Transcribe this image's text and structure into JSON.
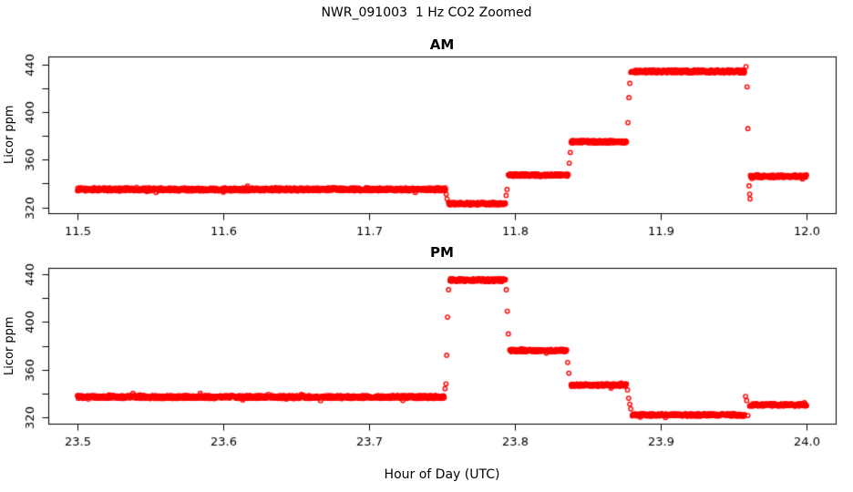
{
  "title": "NWR_091003  1 Hz CO2 Zoomed",
  "xlabel": "Hour of Day (UTC)",
  "colors": {
    "points": "#FF0000",
    "axis": "#000000",
    "background": "#FFFFFF"
  },
  "chart_data": [
    {
      "type": "scatter",
      "title": "AM",
      "ylabel": "Licor ppm",
      "xlim": [
        11.5,
        12.0
      ],
      "ylim": [
        320,
        440
      ],
      "xticks": [
        "11.5",
        "11.6",
        "11.7",
        "11.8",
        "11.9",
        "12.0"
      ],
      "xtick_values": [
        11.5,
        11.6,
        11.7,
        11.8,
        11.9,
        12.0
      ],
      "ytick_labeled": [
        320,
        360,
        400,
        440
      ],
      "ytick_minor": [
        340,
        380,
        420
      ],
      "sample_rate_hz": 1,
      "marker": "open-circle",
      "point_color": "#FF0000",
      "grid": false,
      "segments": [
        {
          "t_start": 11.5,
          "t_end": 11.7525,
          "ppm": 335.0,
          "noise": 1.3
        },
        {
          "t_start": 11.7545,
          "t_end": 11.7935,
          "ppm": 323.0,
          "noise": 1.1
        },
        {
          "t_start": 11.7955,
          "t_end": 11.8365,
          "ppm": 347.0,
          "noise": 1.1
        },
        {
          "t_start": 11.8385,
          "t_end": 11.8765,
          "ppm": 375.0,
          "noise": 1.1
        },
        {
          "t_start": 11.8795,
          "t_end": 11.9575,
          "ppm": 434.0,
          "noise": 1.3
        },
        {
          "t_start": 11.9615,
          "t_end": 12.0,
          "ppm": 346.0,
          "noise": 1.1
        }
      ],
      "transition_points": [
        [
          11.7529,
          331.0
        ],
        [
          11.7535,
          327.0
        ],
        [
          11.794,
          330.0
        ],
        [
          11.7946,
          335.0
        ],
        [
          11.8373,
          357.0
        ],
        [
          11.838,
          366.0
        ],
        [
          11.8775,
          391.0
        ],
        [
          11.8782,
          412.0
        ],
        [
          11.8788,
          424.0
        ],
        [
          11.9585,
          438.0
        ],
        [
          11.9592,
          421.0
        ],
        [
          11.9598,
          386.0
        ],
        [
          11.9606,
          338.0
        ],
        [
          11.961,
          331.0
        ],
        [
          11.9613,
          327.0
        ]
      ]
    },
    {
      "type": "scatter",
      "title": "PM",
      "ylabel": "Licor ppm",
      "xlim": [
        23.5,
        24.0
      ],
      "ylim": [
        320,
        440
      ],
      "xticks": [
        "23.5",
        "23.6",
        "23.7",
        "23.8",
        "23.9",
        "24.0"
      ],
      "xtick_values": [
        23.5,
        23.6,
        23.7,
        23.8,
        23.9,
        24.0
      ],
      "ytick_labeled": [
        320,
        360,
        400,
        440
      ],
      "ytick_minor": [
        340,
        380,
        420
      ],
      "sample_rate_hz": 1,
      "marker": "open-circle",
      "point_color": "#FF0000",
      "grid": false,
      "segments": [
        {
          "t_start": 23.5,
          "t_end": 23.7515,
          "ppm": 337.0,
          "noise": 1.3
        },
        {
          "t_start": 23.7555,
          "t_end": 23.7935,
          "ppm": 435.0,
          "noise": 1.3
        },
        {
          "t_start": 23.7965,
          "t_end": 23.8355,
          "ppm": 376.0,
          "noise": 1.1
        },
        {
          "t_start": 23.8385,
          "t_end": 23.8765,
          "ppm": 347.0,
          "noise": 1.1
        },
        {
          "t_start": 23.8805,
          "t_end": 23.9575,
          "ppm": 322.0,
          "noise": 1.1
        },
        {
          "t_start": 23.961,
          "t_end": 24.0,
          "ppm": 330.5,
          "noise": 1.1
        }
      ],
      "transition_points": [
        [
          23.7521,
          344.0
        ],
        [
          23.7527,
          348.0
        ],
        [
          23.7532,
          372.0
        ],
        [
          23.7538,
          404.0
        ],
        [
          23.7545,
          427.0
        ],
        [
          23.7941,
          427.0
        ],
        [
          23.7948,
          409.0
        ],
        [
          23.7955,
          390.0
        ],
        [
          23.8362,
          366.0
        ],
        [
          23.837,
          357.0
        ],
        [
          23.8772,
          343.0
        ],
        [
          23.878,
          336.0
        ],
        [
          23.8788,
          331.0
        ],
        [
          23.8795,
          327.0
        ],
        [
          23.9582,
          337.5
        ],
        [
          23.959,
          334.0
        ],
        [
          23.9598,
          321.5
        ]
      ]
    }
  ]
}
